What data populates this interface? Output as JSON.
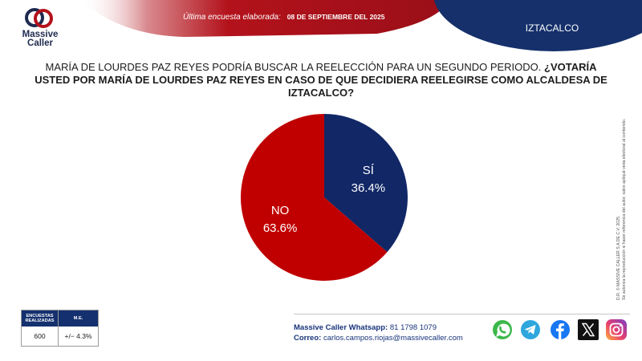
{
  "header": {
    "brand_line1": "Massive",
    "brand_line2": "Caller",
    "survey_label": "Última encuesta elaborada:",
    "survey_date": "08 DE SEPTIEMBRE DEL 2025",
    "region": "IZTACALCO",
    "colors": {
      "red": "#b3121b",
      "navy": "#15306b"
    }
  },
  "question": {
    "intro": "MARÍA DE LOURDES PAZ REYES PODRÍA BUSCAR LA REELECCIÓN PARA UN SEGUNDO PERIODO. ",
    "bold": "¿VOTARÍA USTED POR MARÍA DE LOURDES PAZ REYES EN CASO DE QUE DECIDIERA REELEGIRSE COMO ALCALDESA DE IZTACALCO?"
  },
  "chart_data": {
    "type": "pie",
    "slices": [
      {
        "label": "SÍ",
        "value": 36.4,
        "display": "36.4%",
        "color": "#112766"
      },
      {
        "label": "NO",
        "value": 63.6,
        "display": "63.6%",
        "color": "#c00000"
      }
    ],
    "start": "12 o'clock, clockwise"
  },
  "side_note": {
    "line1": "D.R. © MASSIVE CALLER S.A DE C.V. 2025.",
    "line2": "Se autoriza la reproducción si hacer referencia del autor, salvo apliqué veda electoral al contenido."
  },
  "stats": {
    "col1_header": "ENCUESTAS REALIZADAS",
    "col2_header": "M.E.",
    "col1_value": "600",
    "col2_value": "+/− 4.3%"
  },
  "contact": {
    "whatsapp_label": "Massive Caller Whatsapp:",
    "whatsapp_value": "81 1798 1079",
    "email_label": "Correo:",
    "email_value": "carlos.campos.riojas@massivecaller.com"
  },
  "social": {
    "icons": [
      "whatsapp-icon",
      "telegram-icon",
      "facebook-icon",
      "x-icon",
      "instagram-icon"
    ]
  }
}
